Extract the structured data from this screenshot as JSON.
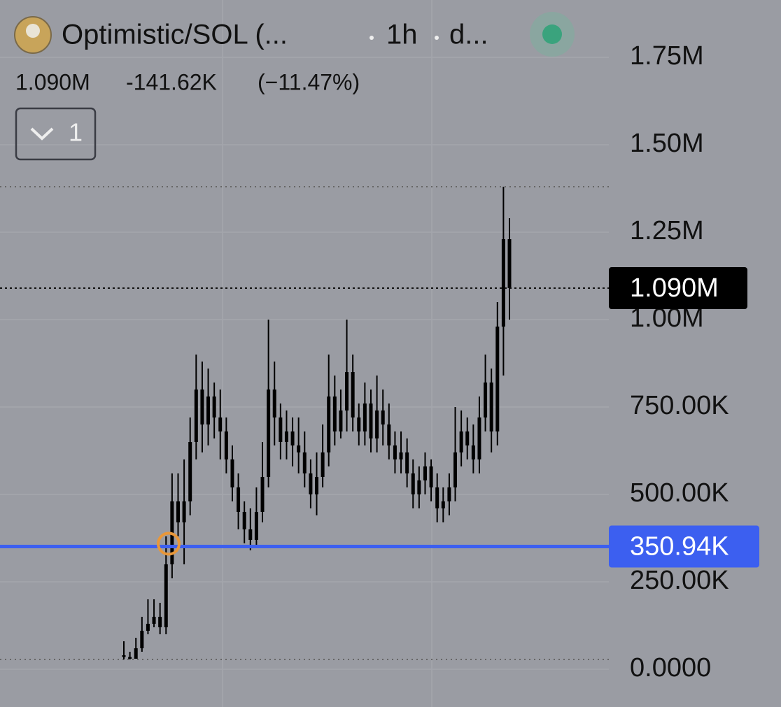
{
  "chart_data": {
    "type": "candlestick",
    "title": "Optimistic/SOL (...",
    "interval": "1h",
    "source": "d...",
    "summary": {
      "price": "1.090M",
      "change": "-141.62K",
      "change_pct": "(−11.47%)"
    },
    "indicator_count": "1",
    "color": "#000000",
    "ylim": [
      -108000,
      1914000
    ],
    "yticks": [
      {
        "value": 0,
        "label": "0.0000"
      },
      {
        "value": 250000,
        "label": "250.00K"
      },
      {
        "value": 500000,
        "label": "500.00K"
      },
      {
        "value": 750000,
        "label": "750.00K"
      },
      {
        "value": 1000000,
        "label": "1.00M"
      },
      {
        "value": 1250000,
        "label": "1.25M"
      },
      {
        "value": 1500000,
        "label": "1.50M"
      },
      {
        "value": 1750000,
        "label": "1.75M"
      }
    ],
    "grid": true,
    "last_price": {
      "value": 1090000,
      "label": "1.090M"
    },
    "price_line": {
      "value": 350940,
      "label": "350.94K",
      "color": "#3c5ff0"
    },
    "open": [
      40000,
      35000,
      30000,
      60000,
      110000,
      130000,
      150000,
      120000,
      300000,
      480000,
      420000,
      480000,
      650000,
      800000,
      700000,
      780000,
      720000,
      680000,
      600000,
      520000,
      450000,
      400000,
      370000,
      450000,
      550000,
      800000,
      720000,
      650000,
      680000,
      640000,
      620000,
      560000,
      500000,
      550000,
      620000,
      780000,
      680000,
      740000,
      850000,
      720000,
      680000,
      760000,
      660000,
      740000,
      700000,
      640000,
      600000,
      620000,
      560000,
      500000,
      540000,
      580000,
      520000,
      460000,
      480000,
      520000,
      620000,
      680000,
      640000,
      600000,
      720000,
      820000,
      680000,
      980000,
      1230000
    ],
    "high": [
      80000,
      50000,
      90000,
      150000,
      200000,
      200000,
      190000,
      380000,
      560000,
      560000,
      600000,
      720000,
      900000,
      880000,
      860000,
      820000,
      800000,
      720000,
      640000,
      560000,
      480000,
      460000,
      520000,
      650000,
      1000000,
      880000,
      760000,
      740000,
      720000,
      720000,
      680000,
      600000,
      620000,
      700000,
      900000,
      840000,
      800000,
      1000000,
      900000,
      760000,
      820000,
      800000,
      840000,
      800000,
      760000,
      680000,
      680000,
      660000,
      600000,
      580000,
      620000,
      600000,
      560000,
      520000,
      560000,
      750000,
      740000,
      720000,
      700000,
      780000,
      900000,
      860000,
      1050000,
      1380000,
      1290000
    ],
    "low": [
      28000,
      28000,
      30000,
      50000,
      100000,
      120000,
      100000,
      100000,
      260000,
      380000,
      300000,
      440000,
      600000,
      620000,
      640000,
      660000,
      600000,
      560000,
      480000,
      400000,
      360000,
      340000,
      350000,
      420000,
      520000,
      640000,
      600000,
      600000,
      580000,
      560000,
      520000,
      460000,
      440000,
      520000,
      580000,
      640000,
      660000,
      680000,
      680000,
      640000,
      640000,
      620000,
      620000,
      640000,
      600000,
      560000,
      560000,
      520000,
      460000,
      460000,
      500000,
      480000,
      420000,
      420000,
      440000,
      480000,
      580000,
      600000,
      560000,
      560000,
      680000,
      620000,
      640000,
      840000,
      1000000
    ],
    "close": [
      35000,
      30000,
      60000,
      110000,
      130000,
      150000,
      120000,
      300000,
      480000,
      420000,
      480000,
      650000,
      800000,
      700000,
      780000,
      720000,
      680000,
      600000,
      520000,
      450000,
      400000,
      370000,
      450000,
      550000,
      800000,
      720000,
      650000,
      680000,
      640000,
      620000,
      560000,
      500000,
      550000,
      620000,
      780000,
      680000,
      740000,
      850000,
      720000,
      680000,
      760000,
      660000,
      740000,
      700000,
      640000,
      600000,
      620000,
      560000,
      500000,
      540000,
      580000,
      520000,
      460000,
      480000,
      520000,
      620000,
      680000,
      640000,
      600000,
      720000,
      820000,
      680000,
      980000,
      1230000,
      1090000
    ]
  }
}
